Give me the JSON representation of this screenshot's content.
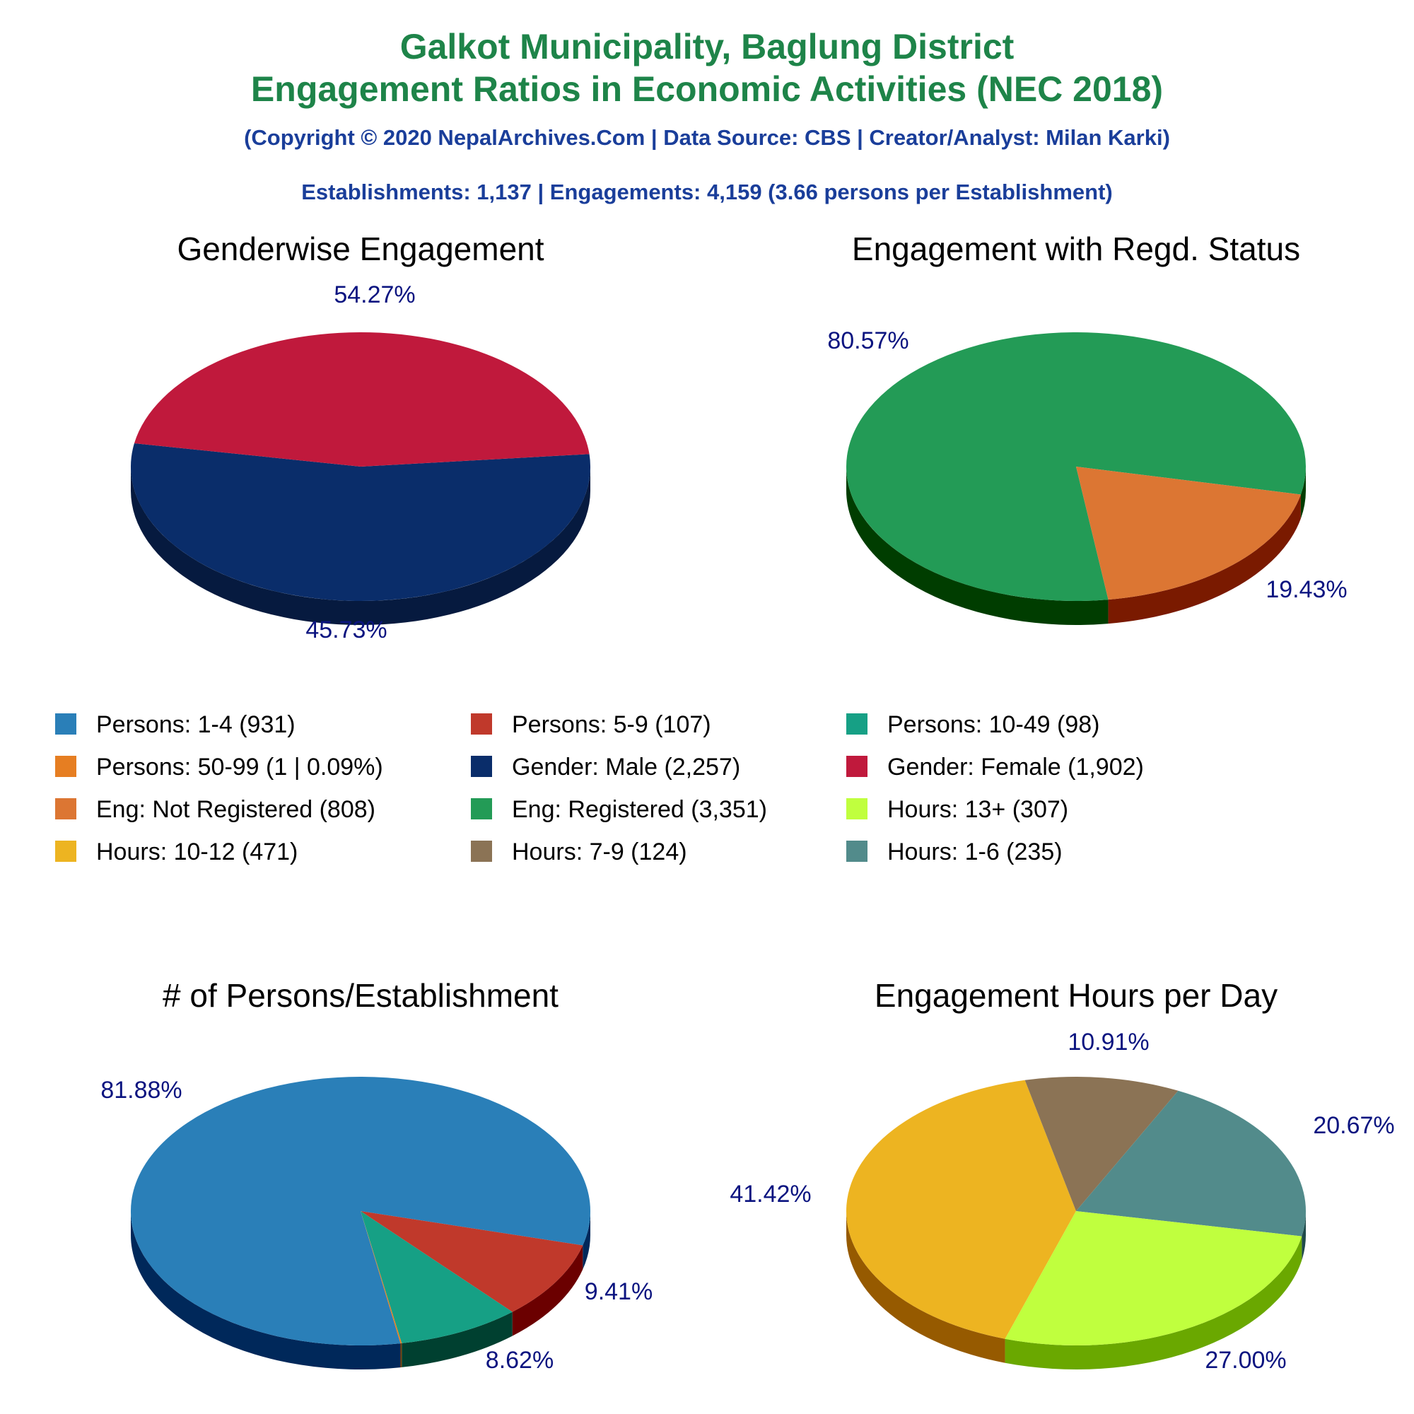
{
  "header": {
    "title_line1": "Galkot Municipality, Baglung District",
    "title_line2": "Engagement Ratios in Economic Activities (NEC 2018)",
    "copyright": "(Copyright © 2020 NepalArchives.Com | Data Source: CBS | Creator/Analyst: Milan Karki)",
    "summary": "Establishments: 1,137 | Engagements: 4,159 (3.66 persons per Establishment)"
  },
  "legend": [
    {
      "label": "Persons: 1-4 (931)",
      "color": "#2a7fb8"
    },
    {
      "label": "Persons: 5-9 (107)",
      "color": "#c0392b"
    },
    {
      "label": "Persons: 10-49 (98)",
      "color": "#16a085"
    },
    {
      "label": "Persons: 50-99 (1 | 0.09%)",
      "color": "#e67e22"
    },
    {
      "label": "Gender: Male (2,257)",
      "color": "#0a2d6a"
    },
    {
      "label": "Gender: Female (1,902)",
      "color": "#c0193c"
    },
    {
      "label": "Eng: Not Registered (808)",
      "color": "#dc7633"
    },
    {
      "label": "Eng: Registered (3,351)",
      "color": "#239b56"
    },
    {
      "label": "Hours: 13+ (307)",
      "color": "#c0ff3e"
    },
    {
      "label": "Hours: 10-12 (471)",
      "color": "#edb421"
    },
    {
      "label": "Hours: 7-9 (124)",
      "color": "#8b7355"
    },
    {
      "label": "Hours: 1-6 (235)",
      "color": "#528b8b"
    }
  ],
  "chart_data": [
    {
      "type": "pie",
      "title": "Genderwise Engagement",
      "slices": [
        {
          "name": "Gender: Male",
          "value": 2257,
          "label": "54.27%",
          "color": "#0a2d6a",
          "side": "#061a3f"
        },
        {
          "name": "Gender: Female",
          "value": 1902,
          "label": "45.73%",
          "color": "#c0193c",
          "side": "#6b0000"
        }
      ]
    },
    {
      "type": "pie",
      "title": "Engagement with Regd. Status",
      "slices": [
        {
          "name": "Eng: Registered",
          "value": 3351,
          "label": "80.57%",
          "color": "#239b56",
          "side": "#003d00"
        },
        {
          "name": "Eng: Not Registered",
          "value": 808,
          "label": "19.43%",
          "color": "#dc7633",
          "side": "#7a1a00"
        }
      ]
    },
    {
      "type": "pie",
      "title": "# of Persons/Establishment",
      "slices": [
        {
          "name": "Persons: 1-4",
          "value": 931,
          "label": "81.88%",
          "color": "#2a7fb8",
          "side": "#00285a"
        },
        {
          "name": "Persons: 5-9",
          "value": 107,
          "label": "9.41%",
          "color": "#c0392b",
          "side": "#6b0000"
        },
        {
          "name": "Persons: 10-49",
          "value": 98,
          "label": "8.62%",
          "color": "#16a085",
          "side": "#004030"
        },
        {
          "name": "Persons: 50-99",
          "value": 1,
          "label": "",
          "color": "#e67e22",
          "side": "#7a3a00"
        }
      ]
    },
    {
      "type": "pie",
      "title": "Engagement Hours per Day",
      "slices": [
        {
          "name": "Hours: 10-12",
          "value": 471,
          "label": "41.42%",
          "color": "#edb421",
          "side": "#965a00"
        },
        {
          "name": "Hours: 7-9",
          "value": 124,
          "label": "10.91%",
          "color": "#8b7355",
          "side": "#4a3a20"
        },
        {
          "name": "Hours: 1-6",
          "value": 235,
          "label": "20.67%",
          "color": "#528b8b",
          "side": "#1f4a4a"
        },
        {
          "name": "Hours: 13+",
          "value": 307,
          "label": "27.00%",
          "color": "#c0ff3e",
          "side": "#6aa800"
        }
      ]
    }
  ]
}
